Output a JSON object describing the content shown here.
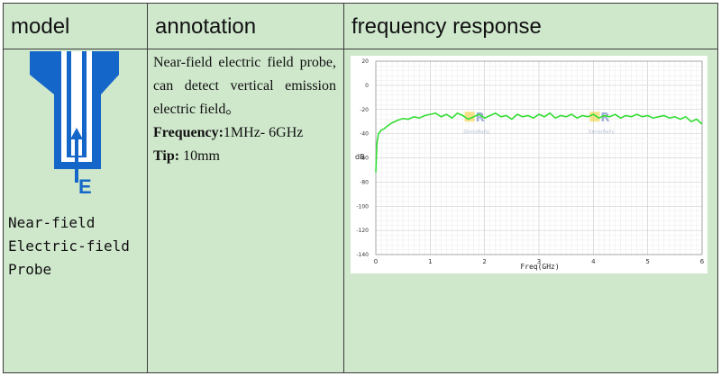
{
  "headers": {
    "model": "model",
    "annotation": "annotation",
    "frequency_response": "frequency response"
  },
  "model": {
    "name_lines": [
      "Near-field",
      "Electric-field",
      "Probe"
    ],
    "probe_label": "E",
    "probe_color": "#1466c8"
  },
  "annotation": {
    "description": "Near-field electric field probe, can detect vertical emission electric field。",
    "frequency_label": "Frequency:",
    "frequency_value": "1MHz- 6GHz",
    "tip_label": "Tip:",
    "tip_value": " 10mm"
  },
  "chart_data": {
    "type": "line",
    "xlabel": "Freq(GHz)",
    "ylabel": "dB",
    "xlim": [
      0,
      6
    ],
    "ylim": [
      -140,
      20
    ],
    "x_ticks": [
      "0",
      "1",
      "2",
      "3",
      "4",
      "5",
      "6"
    ],
    "y_ticks": [
      "20",
      "0",
      "-20",
      "-40",
      "-60",
      "-80",
      "-100",
      "-120",
      "-140"
    ],
    "grid": true,
    "line_color": "#33dd33",
    "watermark": "SinnoRally",
    "series": [
      {
        "values": [
          [
            0.0,
            -72
          ],
          [
            0.02,
            -48
          ],
          [
            0.05,
            -40
          ],
          [
            0.1,
            -37
          ],
          [
            0.15,
            -36
          ],
          [
            0.2,
            -34
          ],
          [
            0.3,
            -31
          ],
          [
            0.4,
            -29
          ],
          [
            0.5,
            -27.5
          ],
          [
            0.6,
            -28
          ],
          [
            0.7,
            -26
          ],
          [
            0.8,
            -27
          ],
          [
            0.9,
            -25
          ],
          [
            1.0,
            -24
          ],
          [
            1.1,
            -23
          ],
          [
            1.2,
            -26
          ],
          [
            1.3,
            -24
          ],
          [
            1.4,
            -27
          ],
          [
            1.5,
            -23
          ],
          [
            1.6,
            -25
          ],
          [
            1.7,
            -28
          ],
          [
            1.8,
            -26
          ],
          [
            1.9,
            -24
          ],
          [
            2.0,
            -27
          ],
          [
            2.1,
            -25
          ],
          [
            2.2,
            -23
          ],
          [
            2.3,
            -26
          ],
          [
            2.4,
            -25
          ],
          [
            2.5,
            -28
          ],
          [
            2.6,
            -24
          ],
          [
            2.7,
            -26
          ],
          [
            2.8,
            -25
          ],
          [
            2.9,
            -27
          ],
          [
            3.0,
            -24
          ],
          [
            3.1,
            -26
          ],
          [
            3.2,
            -23
          ],
          [
            3.3,
            -27
          ],
          [
            3.4,
            -25
          ],
          [
            3.5,
            -26
          ],
          [
            3.6,
            -24
          ],
          [
            3.7,
            -27
          ],
          [
            3.8,
            -25
          ],
          [
            3.9,
            -26
          ],
          [
            4.0,
            -24
          ],
          [
            4.1,
            -27
          ],
          [
            4.2,
            -25
          ],
          [
            4.3,
            -26
          ],
          [
            4.4,
            -24
          ],
          [
            4.5,
            -27
          ],
          [
            4.6,
            -25
          ],
          [
            4.7,
            -26
          ],
          [
            4.8,
            -24
          ],
          [
            4.9,
            -26
          ],
          [
            5.0,
            -25
          ],
          [
            5.1,
            -27
          ],
          [
            5.2,
            -26
          ],
          [
            5.3,
            -25
          ],
          [
            5.4,
            -27
          ],
          [
            5.5,
            -26
          ],
          [
            5.6,
            -28
          ],
          [
            5.7,
            -26
          ],
          [
            5.8,
            -30
          ],
          [
            5.9,
            -28
          ],
          [
            6.0,
            -32
          ]
        ]
      }
    ]
  }
}
